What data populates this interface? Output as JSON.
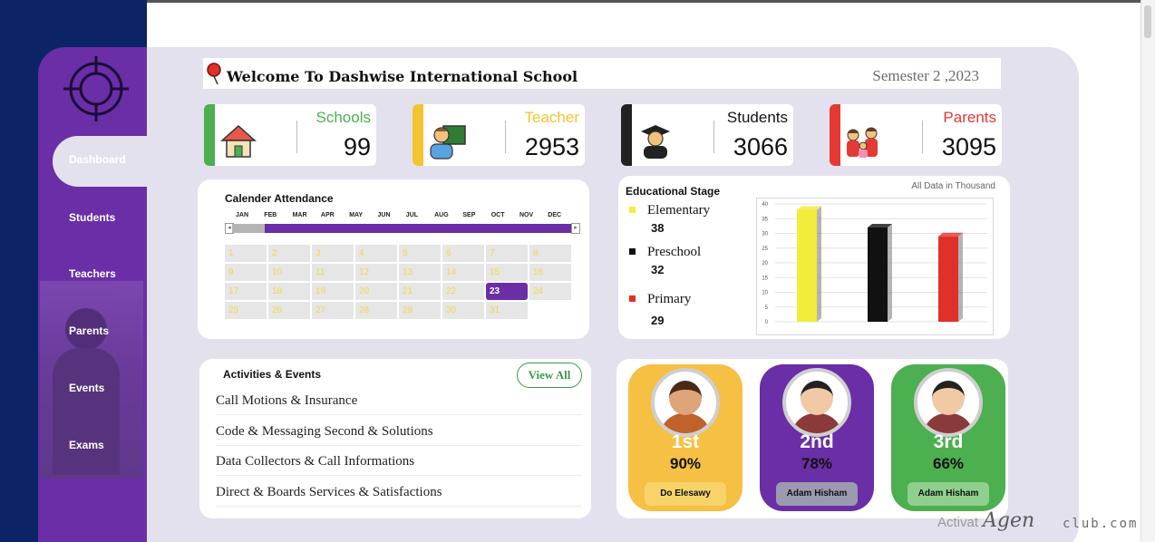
{
  "header": {
    "title": "Welcome To Dashwise International School",
    "semester": "Semester 2 ,2023"
  },
  "sidebar": {
    "items": [
      {
        "label": "Dashboard"
      },
      {
        "label": "Students"
      },
      {
        "label": "Teachers"
      },
      {
        "label": "Parents"
      },
      {
        "label": "Events"
      },
      {
        "label": "Exams"
      }
    ]
  },
  "kpis": [
    {
      "label": "Schools",
      "value": "99",
      "color": "#4caf50",
      "icon": "house-icon"
    },
    {
      "label": "Teacher",
      "value": "2953",
      "color": "#f4c430",
      "icon": "teacher-icon"
    },
    {
      "label": "Students",
      "value": "3066",
      "color": "#222222",
      "icon": "graduate-icon"
    },
    {
      "label": "Parents",
      "value": "3095",
      "color": "#e53935",
      "icon": "family-icon"
    }
  ],
  "calendar": {
    "title": "Calender Attendance",
    "months": [
      "JAN",
      "FEB",
      "MAR",
      "APR",
      "MAY",
      "JUN",
      "JUL",
      "AUG",
      "SEP",
      "OCT",
      "NOV",
      "DEC"
    ],
    "days": [
      "1",
      "2",
      "3",
      "4",
      "5",
      "6",
      "7",
      "8",
      "9",
      "10",
      "11",
      "12",
      "13",
      "14",
      "15",
      "16",
      "17",
      "18",
      "19",
      "20",
      "21",
      "22",
      "23",
      "24",
      "25",
      "26",
      "27",
      "28",
      "29",
      "30",
      "31"
    ],
    "selected_day": "23"
  },
  "education": {
    "title": "Educational Stage",
    "note": "All Data  in Thousand",
    "legend": [
      {
        "name": "Elementary",
        "value": "38",
        "color": "#f2ec3a"
      },
      {
        "name": "Preschool",
        "value": "32",
        "color": "#111111"
      },
      {
        "name": "Primary",
        "value": "29",
        "color": "#e0302a"
      }
    ]
  },
  "chart_data": {
    "type": "bar",
    "categories": [
      "Elementary",
      "Preschool",
      "Primary"
    ],
    "values": [
      38,
      32,
      29
    ],
    "colors": [
      "#f2ec3a",
      "#111111",
      "#e0302a"
    ],
    "ylim": [
      0,
      40
    ],
    "yticks": [
      "0",
      "5",
      "10",
      "15",
      "20",
      "25",
      "30",
      "35",
      "40"
    ],
    "grid": true
  },
  "activities": {
    "title": "Activities & Events",
    "view_all": "View All",
    "items": [
      "Call Motions & Insurance",
      "Code & Messaging Second & Solutions",
      "Data Collectors & Call Informations",
      "Direct & Boards Services & Satisfactions"
    ]
  },
  "rankings": [
    {
      "place": "1st",
      "percent": "90%",
      "name": "Do Elesawy",
      "color": "#f5c043",
      "place_color": "#ffffff",
      "tag_color": "#f7d36a"
    },
    {
      "place": "2nd",
      "percent": "78%",
      "name": "Adam Hisham",
      "color": "#6a2ea6",
      "place_color": "#ffffff",
      "tag_color": "#9b9ab0"
    },
    {
      "place": "3rd",
      "percent": "66%",
      "name": "Adam Hisham",
      "color": "#4caf50",
      "place_color": "#ffffff",
      "tag_color": "#8fd08f"
    }
  ],
  "watermark": {
    "left": "Activat",
    "middle": "Agen",
    "right": "club.com"
  }
}
